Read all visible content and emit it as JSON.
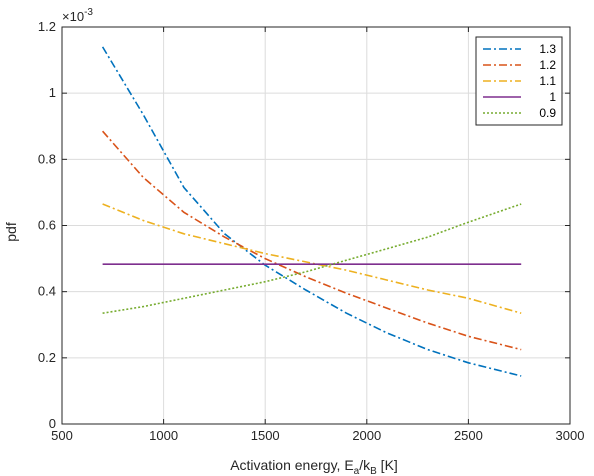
{
  "chart_data": {
    "type": "line",
    "xlabel": "Activation energy, E",
    "xlabel_sub1": "a",
    "xlabel_mid": "/k",
    "xlabel_sub2": "B",
    "xlabel_unit": " [K]",
    "ylabel": "pdf",
    "y_exponent_prefix": "×10",
    "y_exponent_power": "-3",
    "xlim": [
      500,
      3000
    ],
    "ylim": [
      0,
      1.2
    ],
    "xticks": [
      500,
      1000,
      1500,
      2000,
      2500,
      3000
    ],
    "yticks": [
      0,
      0.2,
      0.4,
      0.6,
      0.8,
      1,
      1.2
    ],
    "xtick_labels": [
      "500",
      "1000",
      "1500",
      "2000",
      "2500",
      "3000"
    ],
    "ytick_labels": [
      "0",
      "0.2",
      "0.4",
      "0.6",
      "0.8",
      "1",
      "1.2"
    ],
    "grid": true,
    "legend_position": "top-right",
    "x": [
      700,
      900,
      1100,
      1300,
      1500,
      1700,
      1900,
      2100,
      2300,
      2500,
      2760
    ],
    "series": [
      {
        "name": "1.3",
        "color": "#0072BD",
        "dash": "8,3,2,3",
        "values": [
          1.14,
          0.935,
          0.715,
          0.575,
          0.48,
          0.405,
          0.335,
          0.275,
          0.225,
          0.185,
          0.145
        ]
      },
      {
        "name": "1.2",
        "color": "#D95319",
        "dash": "8,3,2,3",
        "values": [
          0.885,
          0.745,
          0.64,
          0.565,
          0.5,
          0.445,
          0.395,
          0.35,
          0.305,
          0.265,
          0.225
        ]
      },
      {
        "name": "1.1",
        "color": "#EDB120",
        "dash": "8,3,2,3",
        "values": [
          0.665,
          0.615,
          0.575,
          0.545,
          0.515,
          0.49,
          0.465,
          0.435,
          0.405,
          0.38,
          0.335
        ]
      },
      {
        "name": "1",
        "color": "#7E2F8E",
        "dash": "",
        "values": [
          0.483,
          0.483,
          0.483,
          0.483,
          0.483,
          0.483,
          0.483,
          0.483,
          0.483,
          0.483,
          0.483
        ]
      },
      {
        "name": "0.9",
        "color": "#77AC30",
        "dash": "2,2",
        "values": [
          0.335,
          0.355,
          0.38,
          0.405,
          0.43,
          0.46,
          0.495,
          0.53,
          0.565,
          0.61,
          0.665
        ]
      }
    ]
  }
}
